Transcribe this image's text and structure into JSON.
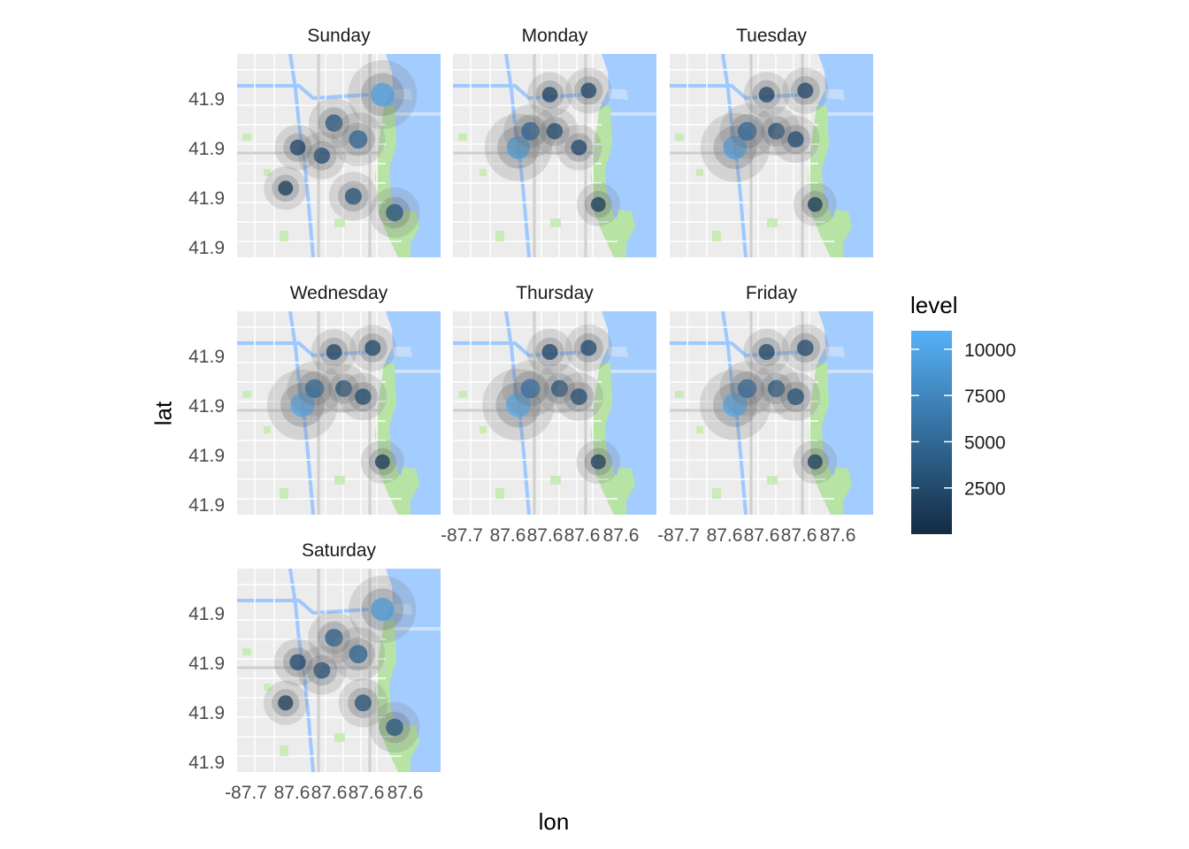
{
  "chart_data": {
    "type": "heatmap",
    "subtype": "faceted density heatmap over basemap",
    "xlabel": "lon",
    "ylabel": "lat",
    "x_tick_labels": [
      "-87.7",
      "87.6",
      "87.6",
      "87.6",
      "87.6"
    ],
    "y_tick_labels": [
      "41.9",
      "41.9",
      "41.9",
      "41.9"
    ],
    "facets": [
      {
        "name": "Sunday",
        "hotspots": [
          {
            "lon": -87.62,
            "lat": 41.895,
            "level": 9500
          },
          {
            "lon": -87.64,
            "lat": 41.888,
            "level": 3500
          },
          {
            "lon": -87.63,
            "lat": 41.884,
            "level": 4500
          },
          {
            "lon": -87.645,
            "lat": 41.88,
            "level": 2500
          },
          {
            "lon": -87.655,
            "lat": 41.882,
            "level": 2000
          },
          {
            "lon": -87.632,
            "lat": 41.87,
            "level": 3000
          },
          {
            "lon": -87.615,
            "lat": 41.866,
            "level": 3500
          },
          {
            "lon": -87.66,
            "lat": 41.872,
            "level": 1200
          }
        ]
      },
      {
        "name": "Monday",
        "hotspots": [
          {
            "lon": -87.653,
            "lat": 41.882,
            "level": 9000
          },
          {
            "lon": -87.648,
            "lat": 41.886,
            "level": 4500
          },
          {
            "lon": -87.638,
            "lat": 41.886,
            "level": 2500
          },
          {
            "lon": -87.628,
            "lat": 41.882,
            "level": 2000
          },
          {
            "lon": -87.624,
            "lat": 41.896,
            "level": 2000
          },
          {
            "lon": -87.64,
            "lat": 41.895,
            "level": 1800
          },
          {
            "lon": -87.62,
            "lat": 41.868,
            "level": 1200
          }
        ]
      },
      {
        "name": "Tuesday",
        "hotspots": [
          {
            "lon": -87.653,
            "lat": 41.882,
            "level": 9500
          },
          {
            "lon": -87.648,
            "lat": 41.886,
            "level": 5000
          },
          {
            "lon": -87.636,
            "lat": 41.886,
            "level": 3000
          },
          {
            "lon": -87.628,
            "lat": 41.884,
            "level": 2500
          },
          {
            "lon": -87.624,
            "lat": 41.896,
            "level": 2200
          },
          {
            "lon": -87.64,
            "lat": 41.895,
            "level": 2000
          },
          {
            "lon": -87.62,
            "lat": 41.868,
            "level": 1200
          }
        ]
      },
      {
        "name": "Wednesday",
        "hotspots": [
          {
            "lon": -87.653,
            "lat": 41.882,
            "level": 10000
          },
          {
            "lon": -87.648,
            "lat": 41.886,
            "level": 5000
          },
          {
            "lon": -87.636,
            "lat": 41.886,
            "level": 3000
          },
          {
            "lon": -87.628,
            "lat": 41.884,
            "level": 2500
          },
          {
            "lon": -87.624,
            "lat": 41.896,
            "level": 2200
          },
          {
            "lon": -87.64,
            "lat": 41.895,
            "level": 2000
          },
          {
            "lon": -87.62,
            "lat": 41.868,
            "level": 1200
          }
        ]
      },
      {
        "name": "Thursday",
        "hotspots": [
          {
            "lon": -87.653,
            "lat": 41.882,
            "level": 10500
          },
          {
            "lon": -87.648,
            "lat": 41.886,
            "level": 5500
          },
          {
            "lon": -87.636,
            "lat": 41.886,
            "level": 3200
          },
          {
            "lon": -87.628,
            "lat": 41.884,
            "level": 2800
          },
          {
            "lon": -87.624,
            "lat": 41.896,
            "level": 2400
          },
          {
            "lon": -87.64,
            "lat": 41.895,
            "level": 2200
          },
          {
            "lon": -87.62,
            "lat": 41.868,
            "level": 1400
          }
        ]
      },
      {
        "name": "Friday",
        "hotspots": [
          {
            "lon": -87.653,
            "lat": 41.882,
            "level": 10000
          },
          {
            "lon": -87.648,
            "lat": 41.886,
            "level": 5000
          },
          {
            "lon": -87.636,
            "lat": 41.886,
            "level": 3500
          },
          {
            "lon": -87.628,
            "lat": 41.884,
            "level": 3000
          },
          {
            "lon": -87.624,
            "lat": 41.896,
            "level": 2600
          },
          {
            "lon": -87.64,
            "lat": 41.895,
            "level": 2200
          },
          {
            "lon": -87.62,
            "lat": 41.868,
            "level": 1400
          }
        ]
      },
      {
        "name": "Saturday",
        "hotspots": [
          {
            "lon": -87.62,
            "lat": 41.895,
            "level": 9000
          },
          {
            "lon": -87.64,
            "lat": 41.888,
            "level": 4000
          },
          {
            "lon": -87.63,
            "lat": 41.884,
            "level": 4500
          },
          {
            "lon": -87.645,
            "lat": 41.88,
            "level": 3000
          },
          {
            "lon": -87.655,
            "lat": 41.882,
            "level": 2500
          },
          {
            "lon": -87.628,
            "lat": 41.872,
            "level": 3000
          },
          {
            "lon": -87.615,
            "lat": 41.866,
            "level": 3500
          },
          {
            "lon": -87.66,
            "lat": 41.872,
            "level": 1500
          }
        ]
      }
    ],
    "legend": {
      "title": "level",
      "placement": "right",
      "range": [
        0,
        11000
      ],
      "tick_values": [
        2500,
        5000,
        7500,
        10000
      ],
      "tick_labels": [
        "10000",
        "7500",
        "5000",
        "2500"
      ],
      "color_low": "#132B43",
      "color_high": "#56B1F7"
    },
    "grid": false,
    "basemap": "Chicago street map"
  }
}
